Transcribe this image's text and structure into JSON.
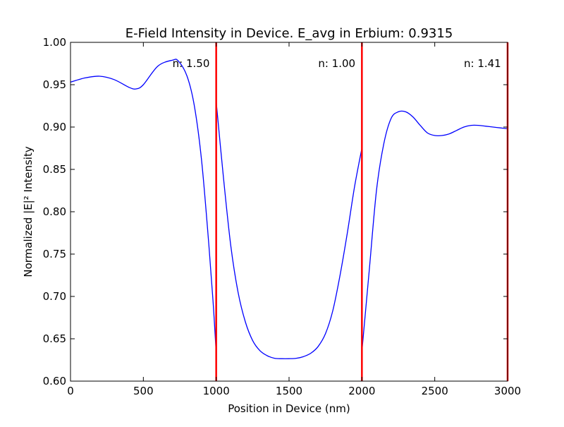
{
  "chart_data": {
    "type": "line",
    "title": "E-Field Intensity in Device. E_avg in Erbium: 0.9315",
    "xlabel": "Position in Device (nm)",
    "ylabel": "Normalized |E|² Intensity",
    "xlim": [
      0,
      3000
    ],
    "ylim": [
      0.6,
      1.0
    ],
    "x_ticks": [
      0,
      500,
      1000,
      1500,
      2000,
      2500,
      3000
    ],
    "x_tick_labels": [
      "0",
      "500",
      "1000",
      "1500",
      "2000",
      "2500",
      "3000"
    ],
    "y_ticks": [
      0.6,
      0.65,
      0.7,
      0.75,
      0.8,
      0.85,
      0.9,
      0.95,
      1.0
    ],
    "y_tick_labels": [
      "0.60",
      "0.65",
      "0.70",
      "0.75",
      "0.80",
      "0.85",
      "0.90",
      "0.95",
      "1.00"
    ],
    "grid": false,
    "legend": "none",
    "line_color": "#0000ff",
    "boundary_color": "#ff0000",
    "boundaries": [
      1000,
      2000,
      3000
    ],
    "annotations": [
      {
        "text": "n: 1.50",
        "x": 700,
        "y": 0.975
      },
      {
        "text": "n: 1.00",
        "x": 1700,
        "y": 0.975
      },
      {
        "text": "n: 1.41",
        "x": 2700,
        "y": 0.975
      }
    ],
    "series": [
      {
        "x": [
          0,
          100,
          200,
          300,
          400,
          450,
          500,
          600,
          700,
          740,
          800,
          850,
          900,
          950,
          980,
          1000,
          1000,
          1050,
          1100,
          1150,
          1200,
          1250,
          1300,
          1350,
          1400,
          1450,
          1500,
          1550,
          1600,
          1650,
          1700,
          1750,
          1800,
          1850,
          1900,
          1950,
          2000,
          2000,
          2050,
          2100,
          2150,
          2200,
          2250,
          2300,
          2350,
          2400,
          2450,
          2500,
          2550,
          2600,
          2650,
          2700,
          2750,
          2800,
          2850,
          2900,
          2950,
          3000
        ],
        "y": [
          0.953,
          0.958,
          0.96,
          0.956,
          0.947,
          0.945,
          0.95,
          0.972,
          0.979,
          0.978,
          0.96,
          0.925,
          0.86,
          0.76,
          0.69,
          0.633,
          0.93,
          0.84,
          0.76,
          0.705,
          0.67,
          0.648,
          0.636,
          0.63,
          0.627,
          0.6265,
          0.6265,
          0.627,
          0.629,
          0.633,
          0.641,
          0.656,
          0.683,
          0.725,
          0.775,
          0.83,
          0.875,
          0.635,
          0.73,
          0.825,
          0.88,
          0.91,
          0.918,
          0.918,
          0.912,
          0.902,
          0.893,
          0.89,
          0.89,
          0.892,
          0.896,
          0.9,
          0.902,
          0.902,
          0.901,
          0.9,
          0.899,
          0.898
        ]
      }
    ]
  }
}
